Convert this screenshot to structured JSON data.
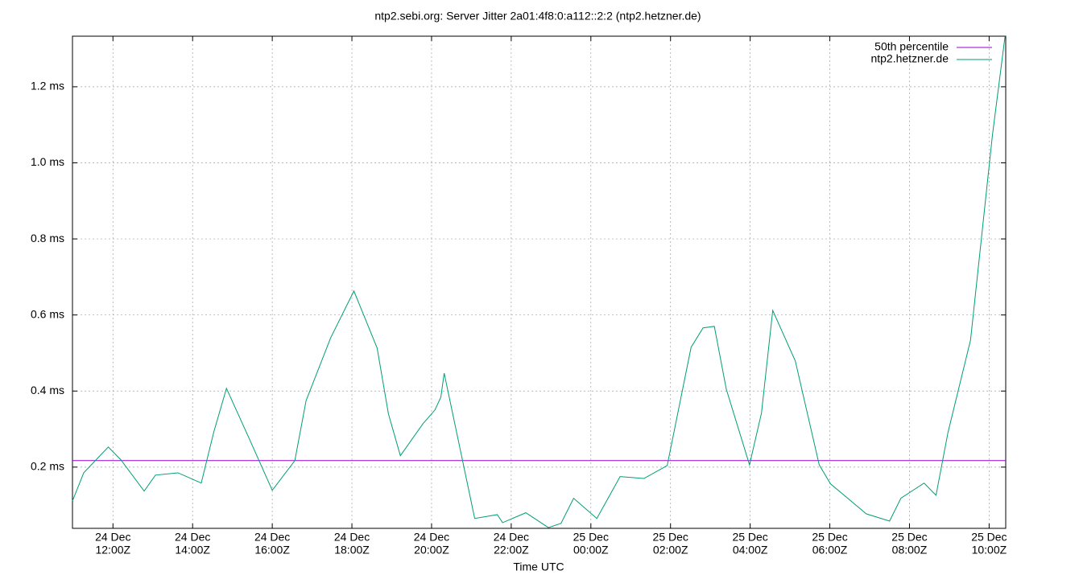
{
  "chart_data": {
    "type": "line",
    "title": "ntp2.sebi.org: Server Jitter 2a01:4f8:0:a112::2:2 (ntp2.hetzner.de)",
    "x_label": "Time UTC",
    "xlim": [
      "24 Dec 10:59Z",
      "25 Dec 10:25Z"
    ],
    "xticks": [
      {
        "date": "24 Dec",
        "time": "12:00Z"
      },
      {
        "date": "24 Dec",
        "time": "14:00Z"
      },
      {
        "date": "24 Dec",
        "time": "16:00Z"
      },
      {
        "date": "24 Dec",
        "time": "18:00Z"
      },
      {
        "date": "24 Dec",
        "time": "20:00Z"
      },
      {
        "date": "24 Dec",
        "time": "22:00Z"
      },
      {
        "date": "25 Dec",
        "time": "00:00Z"
      },
      {
        "date": "25 Dec",
        "time": "02:00Z"
      },
      {
        "date": "25 Dec",
        "time": "04:00Z"
      },
      {
        "date": "25 Dec",
        "time": "06:00Z"
      },
      {
        "date": "25 Dec",
        "time": "08:00Z"
      },
      {
        "date": "25 Dec",
        "time": "10:00Z"
      }
    ],
    "ylim": [
      0.039,
      1.333
    ],
    "yticks": [
      {
        "value": 0.2,
        "label": "0.2 ms"
      },
      {
        "value": 0.4,
        "label": "0.4 ms"
      },
      {
        "value": 0.6,
        "label": "0.6 ms"
      },
      {
        "value": 0.8,
        "label": "0.8 ms"
      },
      {
        "value": 1.0,
        "label": "1.0 ms"
      },
      {
        "value": 1.2,
        "label": "1.2 ms"
      }
    ],
    "grid": true,
    "legend": "top-right",
    "series": [
      {
        "name": "50th percentile",
        "color": "#9400d3",
        "x": [
          "24 Dec 10:59Z",
          "25 Dec 10:25Z"
        ],
        "values": [
          0.217,
          0.217
        ]
      },
      {
        "name": "ntp2.hetzner.de",
        "color": "#009e73",
        "x": [
          "24 Dec 10:59Z",
          "24 Dec 11:16Z",
          "24 Dec 11:53Z",
          "24 Dec 12:12Z",
          "24 Dec 12:47Z",
          "24 Dec 13:04Z",
          "24 Dec 13:38Z",
          "24 Dec 14:13Z",
          "24 Dec 14:32Z",
          "24 Dec 14:51Z",
          "24 Dec 15:24Z",
          "24 Dec 16:00Z",
          "24 Dec 16:34Z",
          "24 Dec 16:51Z",
          "24 Dec 17:28Z",
          "24 Dec 18:03Z",
          "24 Dec 18:38Z",
          "24 Dec 18:55Z",
          "24 Dec 19:13Z",
          "24 Dec 19:47Z",
          "24 Dec 20:05Z",
          "24 Dec 20:14Z",
          "24 Dec 20:19Z",
          "24 Dec 21:05Z",
          "24 Dec 21:39Z",
          "24 Dec 21:47Z",
          "24 Dec 22:22Z",
          "24 Dec 22:56Z",
          "24 Dec 23:15Z",
          "24 Dec 23:34Z",
          "25 Dec 00:09Z",
          "25 Dec 00:44Z",
          "25 Dec 01:20Z",
          "25 Dec 01:55Z",
          "25 Dec 02:31Z",
          "25 Dec 02:49Z",
          "25 Dec 03:06Z",
          "25 Dec 03:24Z",
          "25 Dec 03:59Z",
          "25 Dec 04:17Z",
          "25 Dec 04:34Z",
          "25 Dec 05:08Z",
          "25 Dec 05:44Z",
          "25 Dec 06:01Z",
          "25 Dec 06:55Z",
          "25 Dec 07:30Z",
          "25 Dec 07:47Z",
          "25 Dec 08:22Z",
          "25 Dec 08:40Z",
          "25 Dec 08:58Z",
          "25 Dec 09:32Z",
          "25 Dec 10:05Z",
          "25 Dec 10:24Z"
        ],
        "values": [
          0.111,
          0.185,
          0.253,
          0.219,
          0.137,
          0.179,
          0.185,
          0.158,
          0.293,
          0.407,
          0.28,
          0.139,
          0.217,
          0.375,
          0.54,
          0.663,
          0.513,
          0.34,
          0.23,
          0.314,
          0.35,
          0.384,
          0.447,
          0.065,
          0.075,
          0.054,
          0.08,
          0.041,
          0.052,
          0.118,
          0.065,
          0.175,
          0.17,
          0.204,
          0.515,
          0.566,
          0.57,
          0.405,
          0.206,
          0.342,
          0.612,
          0.479,
          0.206,
          0.156,
          0.077,
          0.058,
          0.118,
          0.158,
          0.126,
          0.291,
          0.534,
          1.073,
          1.333
        ]
      }
    ]
  }
}
